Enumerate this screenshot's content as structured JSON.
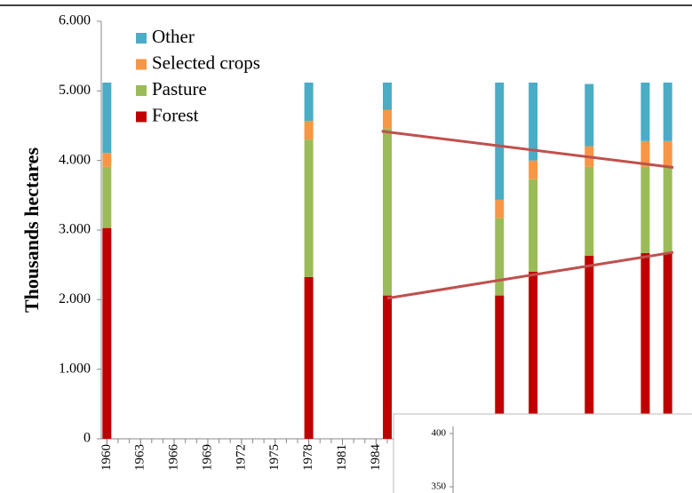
{
  "chart_data": [
    {
      "type": "bar",
      "stacked": true,
      "y_label": "Thousands hectares",
      "x": [
        1960,
        1978,
        1985,
        1995,
        1998,
        2003,
        2008,
        2010
      ],
      "series": [
        {
          "name": "Forest",
          "color": "#c00000",
          "values": [
            3030,
            2325,
            2060,
            2060,
            2400,
            2630,
            2670,
            2670
          ]
        },
        {
          "name": "Pasture",
          "color": "#9bbb59",
          "values": [
            880,
            1975,
            2400,
            1110,
            1330,
            1280,
            1240,
            1240
          ]
        },
        {
          "name": "Selected crops",
          "color": "#f79646",
          "values": [
            200,
            270,
            265,
            265,
            270,
            295,
            370,
            370
          ]
        },
        {
          "name": "Other",
          "color": "#4bacc6",
          "values": [
            1010,
            550,
            395,
            1685,
            1120,
            895,
            840,
            840
          ]
        }
      ],
      "trend_lines": [
        {
          "color": "#c0504d",
          "x": [
            1984.5,
            2010.5
          ],
          "values": [
            4420,
            3900
          ]
        },
        {
          "color": "#c0504d",
          "x": [
            1985,
            2010.5
          ],
          "values": [
            2020,
            2680
          ]
        }
      ],
      "xlim": [
        1959.5,
        2010.5
      ],
      "xticks": [
        1960,
        1963,
        1966,
        1969,
        1972,
        1975,
        1978,
        1981,
        1984
      ],
      "xminorticks": [
        1960,
        1961,
        1962,
        1963,
        1964,
        1965,
        1966,
        1967,
        1968,
        1969,
        1970,
        1971,
        1972,
        1973,
        1974,
        1975,
        1976,
        1977,
        1978,
        1979,
        1980,
        1981,
        1982,
        1983,
        1984,
        1985
      ],
      "ylim": [
        0,
        6000
      ],
      "yticks": [
        0,
        {
          "value": 1000,
          "label": "1.000"
        },
        {
          "value": 2000,
          "label": "2.000"
        },
        {
          "value": 3000,
          "label": "3.000"
        },
        {
          "value": 4000,
          "label": "4.000"
        },
        {
          "value": 5000,
          "label": "5.000"
        },
        {
          "value": 6000,
          "label": "6.000"
        }
      ],
      "legend": "upper left"
    },
    {
      "type": "line",
      "yticks": [
        350,
        400
      ]
    }
  ]
}
